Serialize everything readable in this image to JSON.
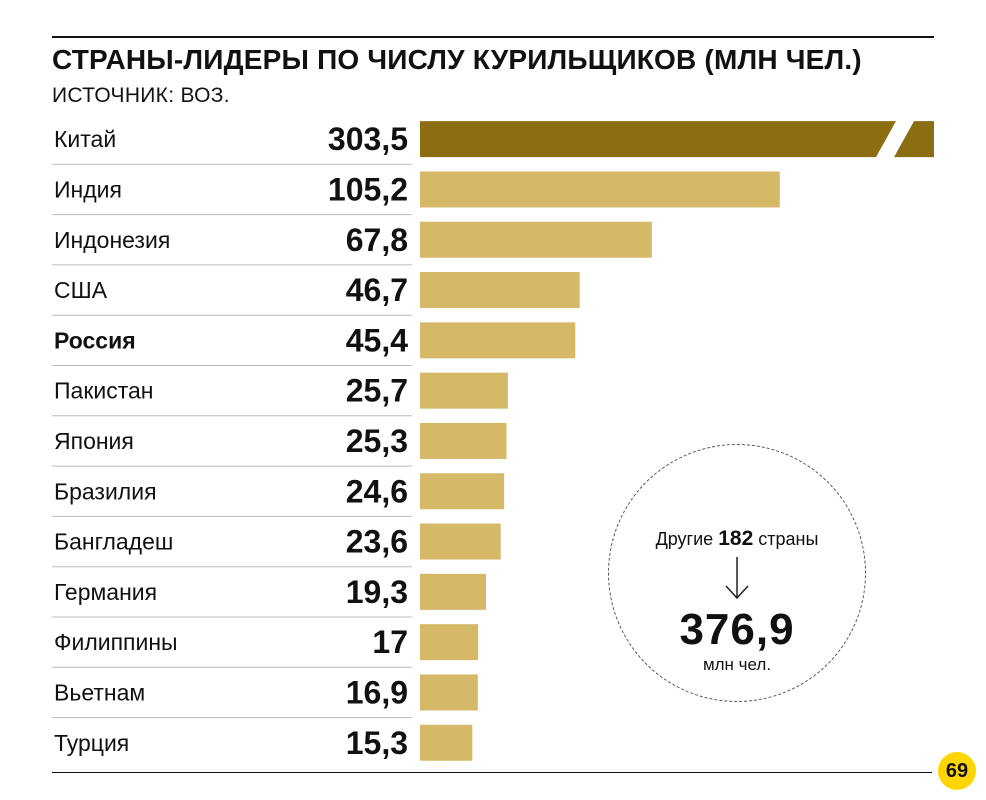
{
  "header": {
    "title": "СТРАНЫ-ЛИДЕРЫ ПО ЧИСЛУ КУРИЛЬЩИКОВ (МЛН ЧЕЛ.)",
    "source": "ИСТОЧНИК: ВОЗ."
  },
  "colors": {
    "bar": "#d5b968",
    "bar_highlight": "#8b6e12",
    "text": "#111111",
    "logo": "#ffd500"
  },
  "chart_data": {
    "type": "bar",
    "orientation": "horizontal",
    "title": "СТРАНЫ-ЛИДЕРЫ ПО ЧИСЛУ КУРИЛЬЩИКОВ (МЛН ЧЕЛ.)",
    "categories": [
      "Китай",
      "Индия",
      "Индонезия",
      "США",
      "Россия",
      "Пакистан",
      "Япония",
      "Бразилия",
      "Бангладеш",
      "Германия",
      "Филиппины",
      "Вьетнам",
      "Турция"
    ],
    "values": [
      303.5,
      105.2,
      67.8,
      46.7,
      45.4,
      25.7,
      25.3,
      24.6,
      23.6,
      19.3,
      17,
      16.9,
      15.3
    ],
    "value_labels": [
      "303,5",
      "105,2",
      "67,8",
      "46,7",
      "45,4",
      "25,7",
      "25,3",
      "24,6",
      "23,6",
      "19,3",
      "17",
      "16,9",
      "15,3"
    ],
    "highlighted_category": "Россия",
    "broken_bar": "Китай",
    "grid": false,
    "legend": "none"
  },
  "callout": {
    "prefix": "Другие",
    "count": "182",
    "suffix": "страны",
    "total": "376,9",
    "unit": "млн чел."
  },
  "logo": {
    "text": "69"
  }
}
